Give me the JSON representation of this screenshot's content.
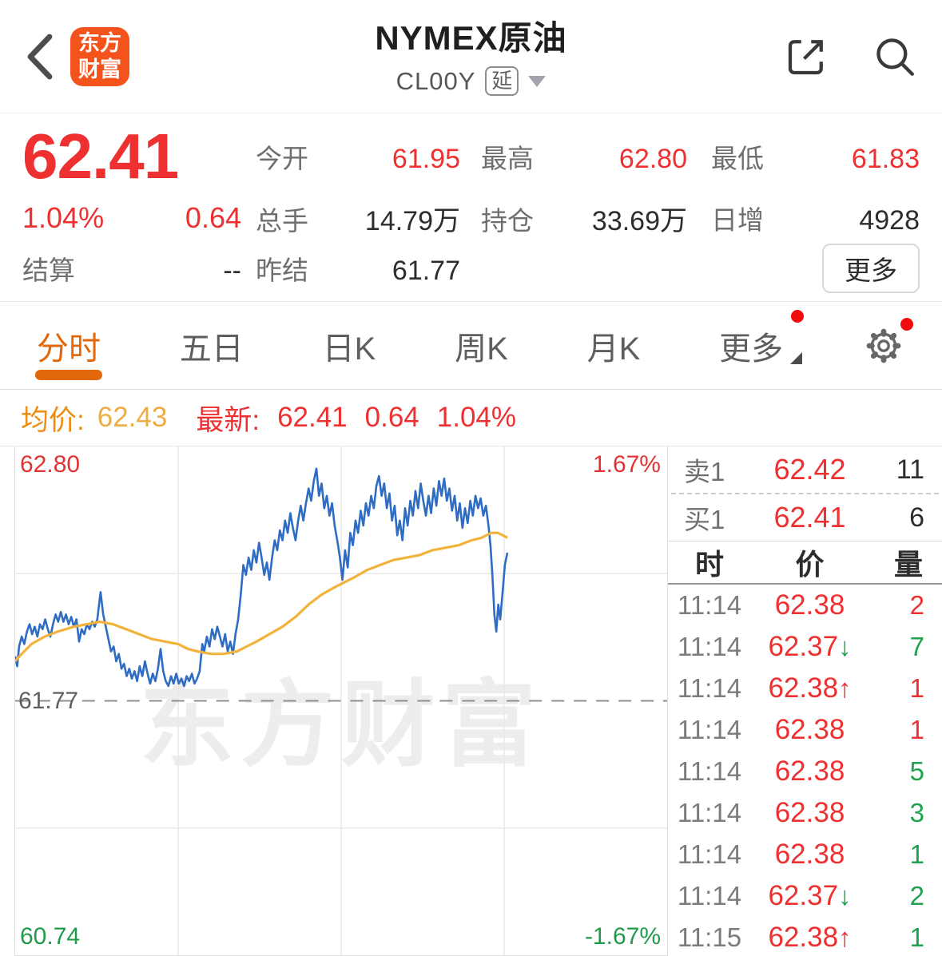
{
  "header": {
    "title": "NYMEX原油",
    "code": "CL00Y",
    "delay_badge": "延",
    "logo_line1": "东方",
    "logo_line2": "财富"
  },
  "quote": {
    "last": "62.41",
    "change_pct": "1.04%",
    "change_abs": "0.64",
    "settle": {
      "label": "结算",
      "value": "--"
    },
    "more_label": "更多",
    "grid": [
      {
        "label": "今开",
        "value": "61.95",
        "red": true
      },
      {
        "label": "最高",
        "value": "62.80",
        "red": true
      },
      {
        "label": "最低",
        "value": "61.83",
        "red": true
      },
      {
        "label": "总手",
        "value": "14.79万",
        "red": false
      },
      {
        "label": "持仓",
        "value": "33.69万",
        "red": false
      },
      {
        "label": "日增",
        "value": "4928",
        "red": false
      },
      {
        "label": "昨结",
        "value": "61.77",
        "red": false
      }
    ]
  },
  "tabs": [
    {
      "label": "分时",
      "active": true
    },
    {
      "label": "五日",
      "active": false
    },
    {
      "label": "日K",
      "active": false
    },
    {
      "label": "周K",
      "active": false
    },
    {
      "label": "月K",
      "active": false
    },
    {
      "label": "更多",
      "active": false,
      "has_red_dot": true,
      "has_caret": true
    }
  ],
  "settings": {
    "has_red_dot": true
  },
  "info_bar": {
    "avg_label": "均价:",
    "avg_value": "62.43",
    "last_label": "最新:",
    "last_value": "62.41",
    "last_change": "0.64",
    "last_pct": "1.04%"
  },
  "watermark": "东方财富",
  "colors": {
    "up_red": "#ee3030",
    "down_green": "#1ea24e",
    "accent_orange": "#e2690b",
    "avg_gold": "#f2b33d",
    "price_blue": "#2f6cc3",
    "logo_orange": "#f4531c"
  },
  "chart_data": {
    "type": "line",
    "title": "NYMEX原油 分时图 (intraday)",
    "ylim": [
      60.74,
      62.8
    ],
    "prev_close": 61.77,
    "y_top_label": "62.80",
    "y_bottom_label": "60.74",
    "pct_top_label": "1.67%",
    "pct_bottom_label": "-1.67%",
    "prev_close_label": "61.77",
    "grid": {
      "v_fracs": [
        0.25,
        0.5,
        0.75
      ],
      "h_fracs": [
        0.25,
        0.75
      ]
    },
    "legend": [
      "price",
      "avg"
    ],
    "series": [
      {
        "name": "price",
        "color": "#2f6cc3",
        "width": 2.6,
        "points": [
          [
            0.0,
            61.95
          ],
          [
            0.003,
            61.91
          ],
          [
            0.006,
            61.99
          ],
          [
            0.01,
            62.03
          ],
          [
            0.014,
            62.0
          ],
          [
            0.018,
            62.05
          ],
          [
            0.022,
            62.08
          ],
          [
            0.026,
            62.04
          ],
          [
            0.03,
            62.07
          ],
          [
            0.034,
            62.03
          ],
          [
            0.038,
            62.08
          ],
          [
            0.042,
            62.06
          ],
          [
            0.046,
            62.1
          ],
          [
            0.05,
            62.06
          ],
          [
            0.054,
            62.03
          ],
          [
            0.058,
            62.08
          ],
          [
            0.062,
            62.12
          ],
          [
            0.066,
            62.09
          ],
          [
            0.07,
            62.13
          ],
          [
            0.074,
            62.09
          ],
          [
            0.078,
            62.12
          ],
          [
            0.082,
            62.08
          ],
          [
            0.086,
            62.11
          ],
          [
            0.09,
            62.07
          ],
          [
            0.094,
            62.1
          ],
          [
            0.098,
            62.01
          ],
          [
            0.102,
            62.06
          ],
          [
            0.106,
            62.04
          ],
          [
            0.11,
            62.08
          ],
          [
            0.114,
            62.06
          ],
          [
            0.118,
            62.09
          ],
          [
            0.122,
            62.07
          ],
          [
            0.126,
            62.1
          ],
          [
            0.131,
            62.21
          ],
          [
            0.135,
            62.12
          ],
          [
            0.139,
            62.07
          ],
          [
            0.143,
            62.02
          ],
          [
            0.147,
            61.97
          ],
          [
            0.151,
            61.99
          ],
          [
            0.155,
            61.93
          ],
          [
            0.159,
            61.96
          ],
          [
            0.163,
            61.9
          ],
          [
            0.167,
            61.92
          ],
          [
            0.171,
            61.87
          ],
          [
            0.175,
            61.9
          ],
          [
            0.179,
            61.86
          ],
          [
            0.183,
            61.89
          ],
          [
            0.187,
            61.85
          ],
          [
            0.191,
            61.91
          ],
          [
            0.195,
            61.87
          ],
          [
            0.199,
            61.93
          ],
          [
            0.203,
            61.88
          ],
          [
            0.207,
            61.84
          ],
          [
            0.211,
            61.88
          ],
          [
            0.215,
            61.85
          ],
          [
            0.219,
            61.9
          ],
          [
            0.223,
            61.98
          ],
          [
            0.227,
            61.89
          ],
          [
            0.231,
            61.85
          ],
          [
            0.235,
            61.83
          ],
          [
            0.239,
            61.87
          ],
          [
            0.243,
            61.84
          ],
          [
            0.247,
            61.88
          ],
          [
            0.251,
            61.84
          ],
          [
            0.255,
            61.86
          ],
          [
            0.259,
            61.83
          ],
          [
            0.263,
            61.87
          ],
          [
            0.267,
            61.85
          ],
          [
            0.271,
            61.88
          ],
          [
            0.275,
            61.84
          ],
          [
            0.279,
            61.86
          ],
          [
            0.283,
            61.89
          ],
          [
            0.287,
            62.0
          ],
          [
            0.29,
            61.97
          ],
          [
            0.294,
            62.03
          ],
          [
            0.298,
            61.99
          ],
          [
            0.302,
            62.06
          ],
          [
            0.306,
            62.02
          ],
          [
            0.31,
            62.07
          ],
          [
            0.314,
            62.03
          ],
          [
            0.318,
            61.99
          ],
          [
            0.322,
            62.04
          ],
          [
            0.326,
            61.97
          ],
          [
            0.33,
            62.01
          ],
          [
            0.334,
            61.96
          ],
          [
            0.338,
            62.04
          ],
          [
            0.342,
            62.1
          ],
          [
            0.346,
            62.2
          ],
          [
            0.35,
            62.32
          ],
          [
            0.354,
            62.28
          ],
          [
            0.358,
            62.35
          ],
          [
            0.362,
            62.3
          ],
          [
            0.366,
            62.38
          ],
          [
            0.37,
            62.33
          ],
          [
            0.374,
            62.41
          ],
          [
            0.378,
            62.35
          ],
          [
            0.382,
            62.28
          ],
          [
            0.386,
            62.33
          ],
          [
            0.39,
            62.26
          ],
          [
            0.394,
            62.35
          ],
          [
            0.398,
            62.42
          ],
          [
            0.402,
            62.38
          ],
          [
            0.406,
            62.46
          ],
          [
            0.41,
            62.42
          ],
          [
            0.414,
            62.5
          ],
          [
            0.418,
            62.45
          ],
          [
            0.422,
            62.53
          ],
          [
            0.426,
            62.47
          ],
          [
            0.43,
            62.42
          ],
          [
            0.434,
            62.5
          ],
          [
            0.438,
            62.56
          ],
          [
            0.442,
            62.5
          ],
          [
            0.446,
            62.57
          ],
          [
            0.45,
            62.63
          ],
          [
            0.454,
            62.58
          ],
          [
            0.458,
            62.66
          ],
          [
            0.462,
            62.71
          ],
          [
            0.466,
            62.6
          ],
          [
            0.47,
            62.65
          ],
          [
            0.474,
            62.55
          ],
          [
            0.478,
            62.6
          ],
          [
            0.482,
            62.52
          ],
          [
            0.486,
            62.57
          ],
          [
            0.49,
            62.48
          ],
          [
            0.494,
            62.42
          ],
          [
            0.498,
            62.35
          ],
          [
            0.502,
            62.26
          ],
          [
            0.506,
            62.38
          ],
          [
            0.51,
            62.31
          ],
          [
            0.514,
            62.45
          ],
          [
            0.518,
            62.4
          ],
          [
            0.522,
            62.5
          ],
          [
            0.526,
            62.45
          ],
          [
            0.53,
            62.54
          ],
          [
            0.534,
            62.48
          ],
          [
            0.538,
            62.57
          ],
          [
            0.542,
            62.52
          ],
          [
            0.546,
            62.6
          ],
          [
            0.55,
            62.55
          ],
          [
            0.554,
            62.64
          ],
          [
            0.558,
            62.68
          ],
          [
            0.562,
            62.6
          ],
          [
            0.566,
            62.65
          ],
          [
            0.57,
            62.55
          ],
          [
            0.574,
            62.61
          ],
          [
            0.578,
            62.5
          ],
          [
            0.582,
            62.56
          ],
          [
            0.586,
            62.44
          ],
          [
            0.59,
            62.5
          ],
          [
            0.594,
            62.42
          ],
          [
            0.598,
            62.55
          ],
          [
            0.602,
            62.48
          ],
          [
            0.606,
            62.58
          ],
          [
            0.61,
            62.52
          ],
          [
            0.614,
            62.62
          ],
          [
            0.618,
            62.55
          ],
          [
            0.622,
            62.65
          ],
          [
            0.626,
            62.58
          ],
          [
            0.63,
            62.52
          ],
          [
            0.634,
            62.6
          ],
          [
            0.638,
            62.53
          ],
          [
            0.642,
            62.63
          ],
          [
            0.646,
            62.56
          ],
          [
            0.65,
            62.66
          ],
          [
            0.654,
            62.6
          ],
          [
            0.658,
            62.67
          ],
          [
            0.662,
            62.58
          ],
          [
            0.666,
            62.63
          ],
          [
            0.67,
            62.54
          ],
          [
            0.674,
            62.6
          ],
          [
            0.678,
            62.5
          ],
          [
            0.682,
            62.57
          ],
          [
            0.686,
            62.47
          ],
          [
            0.69,
            62.55
          ],
          [
            0.694,
            62.49
          ],
          [
            0.698,
            62.58
          ],
          [
            0.702,
            62.52
          ],
          [
            0.706,
            62.6
          ],
          [
            0.71,
            62.55
          ],
          [
            0.714,
            62.59
          ],
          [
            0.718,
            62.52
          ],
          [
            0.722,
            62.56
          ],
          [
            0.726,
            62.48
          ],
          [
            0.729,
            62.4
          ],
          [
            0.732,
            62.28
          ],
          [
            0.735,
            62.12
          ],
          [
            0.738,
            62.05
          ],
          [
            0.741,
            62.16
          ],
          [
            0.744,
            62.1
          ],
          [
            0.748,
            62.22
          ],
          [
            0.751,
            62.32
          ],
          [
            0.755,
            62.37
          ]
        ]
      },
      {
        "name": "avg",
        "color": "#f2b33d",
        "width": 3.2,
        "points": [
          [
            0.0,
            61.93
          ],
          [
            0.01,
            61.96
          ],
          [
            0.025,
            62.0
          ],
          [
            0.045,
            62.03
          ],
          [
            0.065,
            62.05
          ],
          [
            0.09,
            62.07
          ],
          [
            0.11,
            62.08
          ],
          [
            0.13,
            62.09
          ],
          [
            0.15,
            62.08
          ],
          [
            0.17,
            62.06
          ],
          [
            0.19,
            62.04
          ],
          [
            0.21,
            62.02
          ],
          [
            0.23,
            62.01
          ],
          [
            0.25,
            62.0
          ],
          [
            0.265,
            61.98
          ],
          [
            0.28,
            61.97
          ],
          [
            0.3,
            61.96
          ],
          [
            0.32,
            61.96
          ],
          [
            0.34,
            61.97
          ],
          [
            0.355,
            61.99
          ],
          [
            0.37,
            62.01
          ],
          [
            0.39,
            62.04
          ],
          [
            0.41,
            62.07
          ],
          [
            0.43,
            62.11
          ],
          [
            0.45,
            62.16
          ],
          [
            0.47,
            62.2
          ],
          [
            0.49,
            62.23
          ],
          [
            0.505,
            62.25
          ],
          [
            0.52,
            62.27
          ],
          [
            0.54,
            62.3
          ],
          [
            0.56,
            62.32
          ],
          [
            0.58,
            62.34
          ],
          [
            0.6,
            62.35
          ],
          [
            0.62,
            62.36
          ],
          [
            0.64,
            62.38
          ],
          [
            0.66,
            62.39
          ],
          [
            0.68,
            62.4
          ],
          [
            0.7,
            62.42
          ],
          [
            0.715,
            62.43
          ],
          [
            0.73,
            62.45
          ],
          [
            0.74,
            62.45
          ],
          [
            0.748,
            62.44
          ],
          [
            0.755,
            62.43
          ]
        ]
      }
    ]
  },
  "orderbook": {
    "ask": {
      "label": "卖1",
      "price": "62.42",
      "qty": "11"
    },
    "bid": {
      "label": "买1",
      "price": "62.41",
      "qty": "6"
    },
    "head": {
      "time": "时",
      "price": "价",
      "qty": "量"
    },
    "trades": [
      {
        "time": "11:14",
        "price": "62.38",
        "arrow": "",
        "qty": "2",
        "qty_color": "red"
      },
      {
        "time": "11:14",
        "price": "62.37",
        "arrow": "down",
        "qty": "7",
        "qty_color": "green"
      },
      {
        "time": "11:14",
        "price": "62.38",
        "arrow": "up",
        "qty": "1",
        "qty_color": "red"
      },
      {
        "time": "11:14",
        "price": "62.38",
        "arrow": "",
        "qty": "1",
        "qty_color": "red"
      },
      {
        "time": "11:14",
        "price": "62.38",
        "arrow": "",
        "qty": "5",
        "qty_color": "green"
      },
      {
        "time": "11:14",
        "price": "62.38",
        "arrow": "",
        "qty": "3",
        "qty_color": "green"
      },
      {
        "time": "11:14",
        "price": "62.38",
        "arrow": "",
        "qty": "1",
        "qty_color": "green"
      },
      {
        "time": "11:14",
        "price": "62.37",
        "arrow": "down",
        "qty": "2",
        "qty_color": "green"
      },
      {
        "time": "11:15",
        "price": "62.38",
        "arrow": "up",
        "qty": "1",
        "qty_color": "green"
      }
    ]
  }
}
